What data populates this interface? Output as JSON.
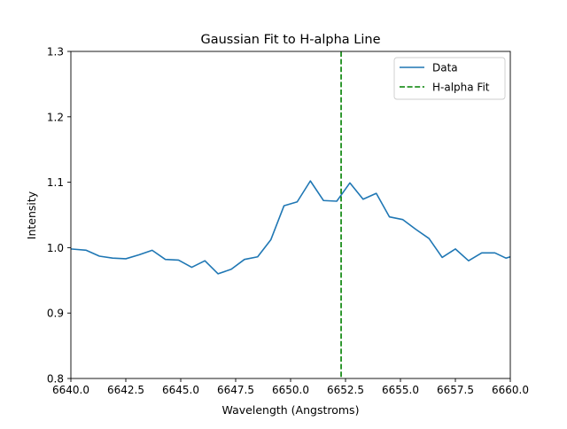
{
  "chart_data": {
    "type": "line",
    "title": "Gaussian Fit to H-alpha Line",
    "xlabel": "Wavelength (Angstroms)",
    "ylabel": "Intensity",
    "xlim": [
      6640.0,
      6660.0
    ],
    "ylim": [
      0.8,
      1.3
    ],
    "xticks": [
      6640.0,
      6642.5,
      6645.0,
      6647.5,
      6650.0,
      6652.5,
      6655.0,
      6657.5,
      6660.0
    ],
    "xtick_labels": [
      "6640.0",
      "6642.5",
      "6645.0",
      "6647.5",
      "6650.0",
      "6652.5",
      "6655.0",
      "6657.5",
      "6660.0"
    ],
    "yticks": [
      0.8,
      0.9,
      1.0,
      1.1,
      1.2,
      1.3
    ],
    "ytick_labels": [
      "0.8",
      "0.9",
      "1.0",
      "1.1",
      "1.2",
      "1.3"
    ],
    "grid": false,
    "legend_position": "top-right",
    "series": [
      {
        "name": "Data",
        "color": "#1f77b4",
        "style": "solid",
        "x": [
          6640.0,
          6640.7,
          6641.3,
          6641.9,
          6642.5,
          6643.1,
          6643.7,
          6644.3,
          6644.9,
          6645.5,
          6646.1,
          6646.7,
          6647.3,
          6647.9,
          6648.5,
          6649.1,
          6649.7,
          6650.3,
          6650.9,
          6651.5,
          6652.1,
          6652.7,
          6653.3,
          6653.9,
          6654.5,
          6655.1,
          6655.7,
          6656.3,
          6656.9,
          6657.5,
          6658.1,
          6658.7,
          6659.3,
          6659.8,
          6660.0
        ],
        "y": [
          0.998,
          0.996,
          0.987,
          0.984,
          0.983,
          0.989,
          0.996,
          0.982,
          0.981,
          0.97,
          0.98,
          0.96,
          0.967,
          0.982,
          0.986,
          1.012,
          1.064,
          1.07,
          1.102,
          1.072,
          1.071,
          1.099,
          1.074,
          1.083,
          1.047,
          1.043,
          1.028,
          1.014,
          0.985,
          0.998,
          0.98,
          0.992,
          0.992,
          0.984,
          0.986
        ]
      },
      {
        "name": "H-alpha Fit",
        "color": "#008000",
        "style": "dashed",
        "type": "vertical-line",
        "x_value": 6652.3
      }
    ]
  }
}
